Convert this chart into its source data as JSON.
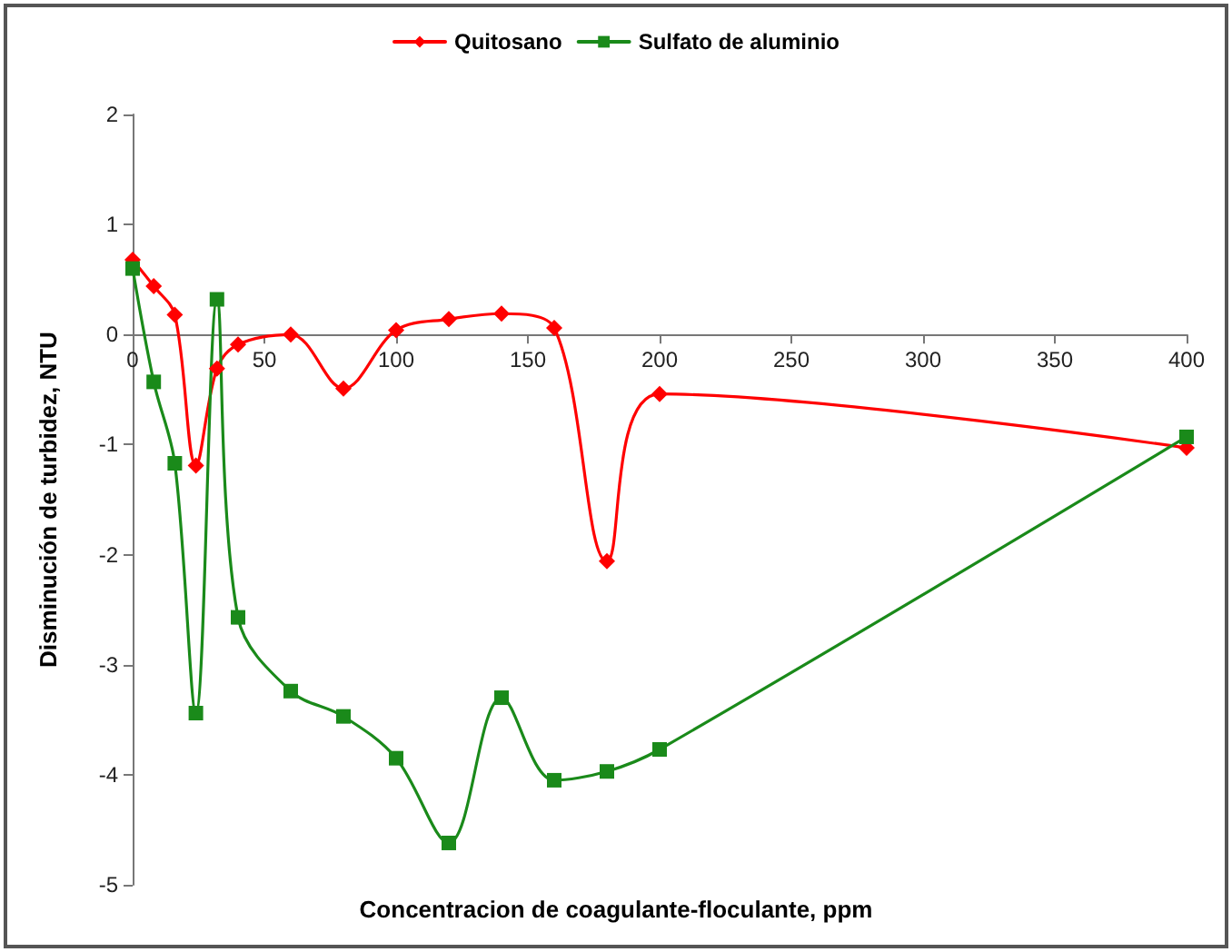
{
  "chart_data": {
    "type": "line",
    "xlabel": "Concentracion de coagulante-floculante, ppm",
    "ylabel": "Disminución de turbidez, NTU",
    "x": [
      0,
      8,
      16,
      24,
      32,
      40,
      60,
      80,
      100,
      120,
      140,
      160,
      180,
      200,
      400
    ],
    "series": [
      {
        "name": "Quitosano",
        "color": "#ff0000",
        "marker": "diamond",
        "values": [
          0.68,
          0.44,
          0.18,
          -1.19,
          -0.31,
          -0.09,
          0.0,
          -0.49,
          0.04,
          0.14,
          0.19,
          0.06,
          -2.06,
          -0.54,
          -1.03
        ]
      },
      {
        "name": "Sulfato de aluminio",
        "color": "#1a8a1a",
        "marker": "square",
        "values": [
          0.6,
          -0.43,
          -1.17,
          -3.44,
          0.32,
          -2.57,
          -3.24,
          -3.47,
          -3.85,
          -4.62,
          -3.3,
          -4.05,
          -3.97,
          -3.77,
          -0.93
        ]
      }
    ],
    "xlim": [
      0,
      400
    ],
    "xticks": [
      0,
      50,
      100,
      150,
      200,
      250,
      300,
      350,
      400
    ],
    "ylim": [
      -5,
      2
    ],
    "yticks": [
      -5,
      -4,
      -3,
      -2,
      -1,
      0,
      1,
      2
    ],
    "grid": false,
    "legend": "top",
    "line_style": "solid"
  }
}
